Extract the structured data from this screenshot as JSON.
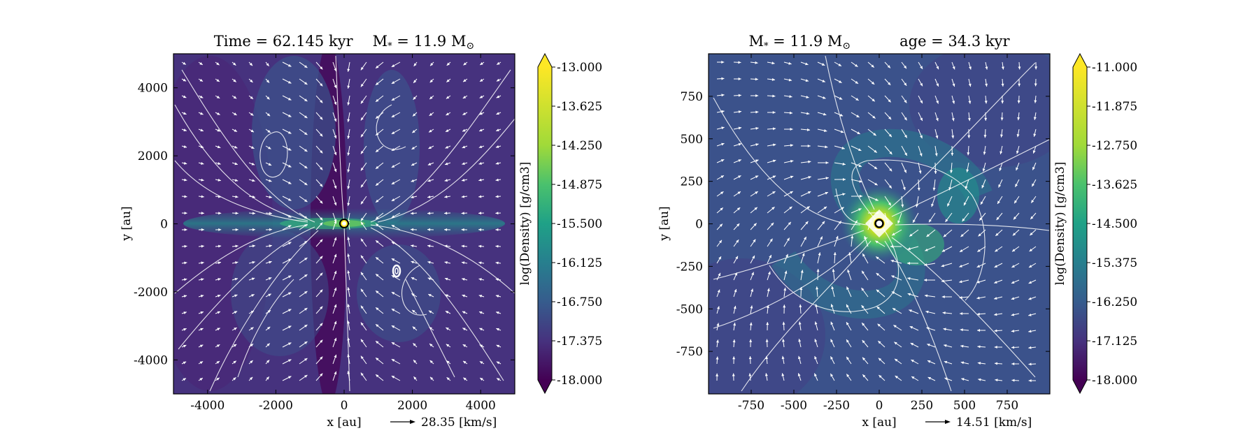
{
  "chart_data": [
    {
      "type": "heatmap",
      "title_left": "Time = 62.145 kyr",
      "title_right": "M",
      "title_right_sub": "*",
      "title_right_rest": " = 11.9 M",
      "title_right_sun": "⊙",
      "xlabel": "x [au]",
      "ylabel": "y [au]",
      "xlim": [
        -5000,
        5000
      ],
      "ylim": [
        -5000,
        5000
      ],
      "xticks": [
        "-4000",
        "-2000",
        "0",
        "2000",
        "4000"
      ],
      "yticks": [
        "4000",
        "2000",
        "0",
        "-2000",
        "-4000"
      ],
      "vector_key": "28.35 [km/s]",
      "colorbar": {
        "label": "log(Density) [g/cm3]",
        "ticks": [
          "-13.000",
          "-13.625",
          "-14.250",
          "-14.875",
          "-15.500",
          "-16.125",
          "-16.750",
          "-17.375",
          "-18.000"
        ],
        "range": [
          -18.0,
          -13.0
        ]
      },
      "features": "edge-on view: dense filament along midplane, bipolar low-density lobes, sink particle at origin, secondary ring near (1500, -1400)"
    },
    {
      "type": "heatmap",
      "title_left": "M",
      "title_left_sub": "*",
      "title_left_rest": " = 11.9 M",
      "title_left_sun": "⊙",
      "title_right": "age = 34.3 kyr",
      "xlabel": "x [au]",
      "ylabel": "y [au]",
      "xlim": [
        -1000,
        1000
      ],
      "ylim": [
        -1000,
        1000
      ],
      "xticks": [
        "-750",
        "-500",
        "-250",
        "0",
        "250",
        "500",
        "750"
      ],
      "yticks": [
        "750",
        "500",
        "250",
        "0",
        "-250",
        "-500",
        "-750"
      ],
      "vector_key": "14.51 [km/s]",
      "colorbar": {
        "label": "log(Density) [g/cm3]",
        "ticks": [
          "-11.000",
          "-11.875",
          "-12.750",
          "-13.625",
          "-14.500",
          "-15.375",
          "-16.250",
          "-17.125",
          "-18.000"
        ],
        "range": [
          -18.0,
          -11.0
        ]
      },
      "features": "face-on view: bright disk at origin with spiral arms, sink particle at center"
    }
  ],
  "colors": {
    "viridis_low": "#440154",
    "viridis_mid": "#21918c",
    "viridis_high": "#fde725",
    "vectors": "#ffffff"
  }
}
